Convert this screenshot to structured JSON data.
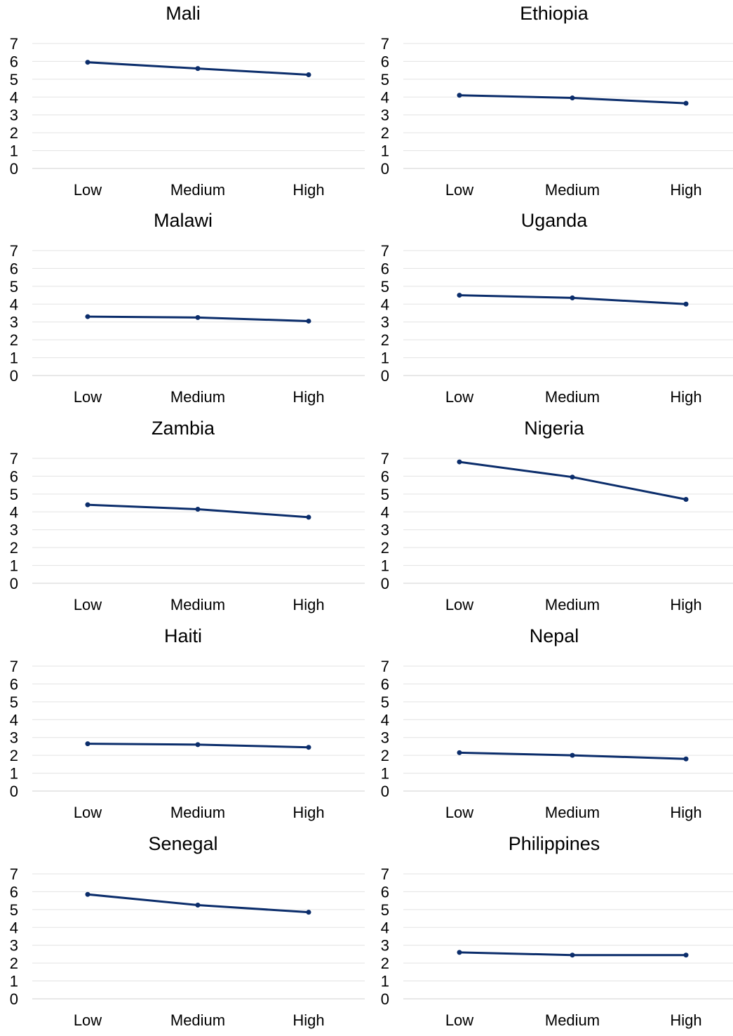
{
  "chart_data": [
    {
      "type": "line",
      "title": "Mali",
      "categories": [
        "Low",
        "Medium",
        "High"
      ],
      "yticks": [
        "0",
        "1",
        "2",
        "3",
        "4",
        "5",
        "6",
        "7"
      ],
      "ylim": [
        0,
        7
      ],
      "values": [
        5.95,
        5.6,
        5.25
      ],
      "line_color": "#0b2d6b"
    },
    {
      "type": "line",
      "title": "Ethiopia",
      "categories": [
        "Low",
        "Medium",
        "High"
      ],
      "yticks": [
        "0",
        "1",
        "2",
        "3",
        "4",
        "5",
        "6",
        "7"
      ],
      "ylim": [
        0,
        7
      ],
      "values": [
        4.1,
        3.95,
        3.65
      ],
      "line_color": "#0b2d6b"
    },
    {
      "type": "line",
      "title": "Malawi",
      "categories": [
        "Low",
        "Medium",
        "High"
      ],
      "yticks": [
        "0",
        "1",
        "2",
        "3",
        "4",
        "5",
        "6",
        "7"
      ],
      "ylim": [
        0,
        7
      ],
      "values": [
        3.3,
        3.25,
        3.05
      ],
      "line_color": "#0b2d6b"
    },
    {
      "type": "line",
      "title": "Uganda",
      "categories": [
        "Low",
        "Medium",
        "High"
      ],
      "yticks": [
        "0",
        "1",
        "2",
        "3",
        "4",
        "5",
        "6",
        "7"
      ],
      "ylim": [
        0,
        7
      ],
      "values": [
        4.5,
        4.35,
        4.0
      ],
      "line_color": "#0b2d6b"
    },
    {
      "type": "line",
      "title": "Zambia",
      "categories": [
        "Low",
        "Medium",
        "High"
      ],
      "yticks": [
        "0",
        "1",
        "2",
        "3",
        "4",
        "5",
        "6",
        "7"
      ],
      "ylim": [
        0,
        7
      ],
      "values": [
        4.4,
        4.15,
        3.7
      ],
      "line_color": "#0b2d6b"
    },
    {
      "type": "line",
      "title": "Nigeria",
      "categories": [
        "Low",
        "Medium",
        "High"
      ],
      "yticks": [
        "0",
        "1",
        "2",
        "3",
        "4",
        "5",
        "6",
        "7"
      ],
      "ylim": [
        0,
        7
      ],
      "values": [
        6.8,
        5.95,
        4.7
      ],
      "line_color": "#0b2d6b"
    },
    {
      "type": "line",
      "title": "Haiti",
      "categories": [
        "Low",
        "Medium",
        "High"
      ],
      "yticks": [
        "0",
        "1",
        "2",
        "3",
        "4",
        "5",
        "6",
        "7"
      ],
      "ylim": [
        0,
        7
      ],
      "values": [
        2.65,
        2.6,
        2.45
      ],
      "line_color": "#0b2d6b"
    },
    {
      "type": "line",
      "title": "Nepal",
      "categories": [
        "Low",
        "Medium",
        "High"
      ],
      "yticks": [
        "0",
        "1",
        "2",
        "3",
        "4",
        "5",
        "6",
        "7"
      ],
      "ylim": [
        0,
        7
      ],
      "values": [
        2.15,
        2.0,
        1.8
      ],
      "line_color": "#0b2d6b"
    },
    {
      "type": "line",
      "title": "Senegal",
      "categories": [
        "Low",
        "Medium",
        "High"
      ],
      "yticks": [
        "0",
        "1",
        "2",
        "3",
        "4",
        "5",
        "6",
        "7"
      ],
      "ylim": [
        0,
        7
      ],
      "values": [
        5.85,
        5.25,
        4.85
      ],
      "line_color": "#0b2d6b"
    },
    {
      "type": "line",
      "title": "Philippines",
      "categories": [
        "Low",
        "Medium",
        "High"
      ],
      "yticks": [
        "0",
        "1",
        "2",
        "3",
        "4",
        "5",
        "6",
        "7"
      ],
      "ylim": [
        0,
        7
      ],
      "values": [
        2.6,
        2.45,
        2.45
      ],
      "line_color": "#0b2d6b"
    }
  ]
}
